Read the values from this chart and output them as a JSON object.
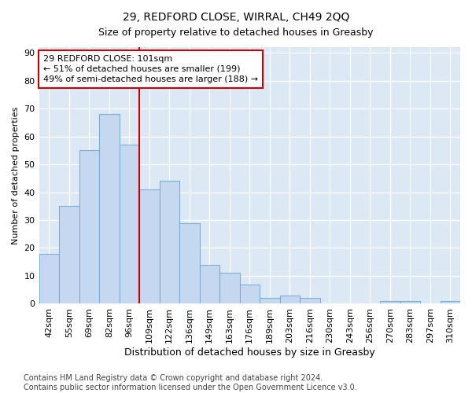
{
  "title": "29, REDFORD CLOSE, WIRRAL, CH49 2QQ",
  "subtitle": "Size of property relative to detached houses in Greasby",
  "xlabel": "Distribution of detached houses by size in Greasby",
  "ylabel": "Number of detached properties",
  "categories": [
    "42sqm",
    "55sqm",
    "69sqm",
    "82sqm",
    "96sqm",
    "109sqm",
    "122sqm",
    "136sqm",
    "149sqm",
    "163sqm",
    "176sqm",
    "189sqm",
    "203sqm",
    "216sqm",
    "230sqm",
    "243sqm",
    "256sqm",
    "270sqm",
    "283sqm",
    "297sqm",
    "310sqm"
  ],
  "values": [
    18,
    35,
    55,
    68,
    57,
    41,
    44,
    29,
    14,
    11,
    7,
    2,
    3,
    2,
    0,
    0,
    0,
    1,
    1,
    0,
    1
  ],
  "bar_color": "#c5d8f0",
  "bar_edge_color": "#7bafd4",
  "vline_x_index": 4.5,
  "vline_color": "#cc0000",
  "annotation_box_text": "29 REDFORD CLOSE: 101sqm\n← 51% of detached houses are smaller (199)\n49% of semi-detached houses are larger (188) →",
  "ylim": [
    0,
    92
  ],
  "yticks": [
    0,
    10,
    20,
    30,
    40,
    50,
    60,
    70,
    80,
    90
  ],
  "background_color": "#dce9f5",
  "footer_text": "Contains HM Land Registry data © Crown copyright and database right 2024.\nContains public sector information licensed under the Open Government Licence v3.0.",
  "title_fontsize": 10,
  "subtitle_fontsize": 9,
  "xlabel_fontsize": 9,
  "ylabel_fontsize": 8,
  "tick_fontsize": 8,
  "annotation_fontsize": 8,
  "footer_fontsize": 7
}
